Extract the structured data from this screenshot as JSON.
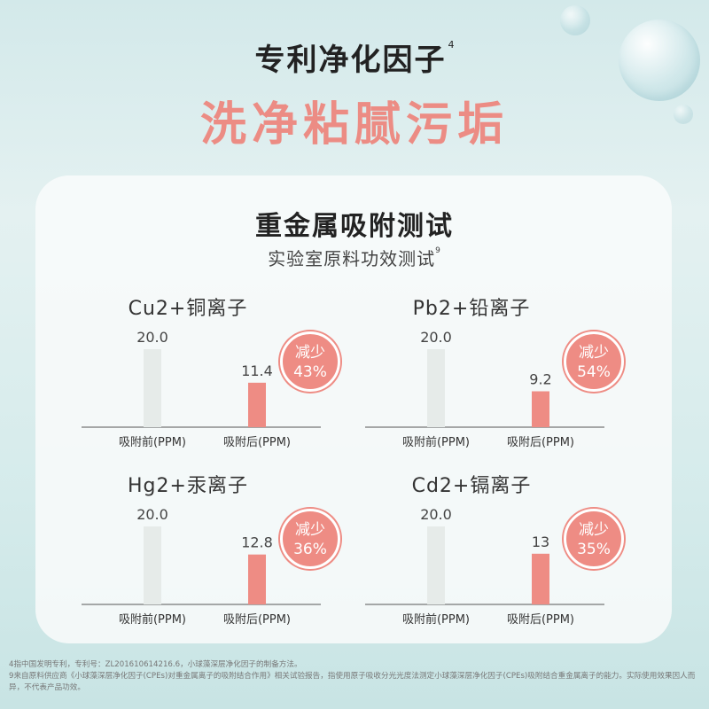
{
  "header": {
    "title": "专利净化因子",
    "title_sup": "4",
    "headline": "洗净粘腻污垢"
  },
  "card": {
    "title": "重金属吸附测试",
    "subtitle": "实验室原料功效测试",
    "subtitle_sup": "9"
  },
  "colors": {
    "accent": "#ee8c84",
    "before_bar": "#e6ebe9",
    "after_bar": "#ee8c84"
  },
  "chart_data": [
    {
      "type": "bar",
      "title": "Cu2+铜离子",
      "categories": [
        "吸附前(PPM)",
        "吸附后(PPM)"
      ],
      "values": [
        20.0,
        11.4
      ],
      "value_labels": [
        "20.0",
        "11.4"
      ],
      "badge": {
        "label": "减少",
        "value": "43%"
      },
      "ylim": [
        0,
        20
      ]
    },
    {
      "type": "bar",
      "title": "Pb2+铅离子",
      "categories": [
        "吸附前(PPM)",
        "吸附后(PPM)"
      ],
      "values": [
        20.0,
        9.2
      ],
      "value_labels": [
        "20.0",
        "9.2"
      ],
      "badge": {
        "label": "减少",
        "value": "54%"
      },
      "ylim": [
        0,
        20
      ]
    },
    {
      "type": "bar",
      "title": "Hg2+汞离子",
      "categories": [
        "吸附前(PPM)",
        "吸附后(PPM)"
      ],
      "values": [
        20.0,
        12.8
      ],
      "value_labels": [
        "20.0",
        "12.8"
      ],
      "badge": {
        "label": "减少",
        "value": "36%"
      },
      "ylim": [
        0,
        20
      ]
    },
    {
      "type": "bar",
      "title": "Cd2+镉离子",
      "categories": [
        "吸附前(PPM)",
        "吸附后(PPM)"
      ],
      "values": [
        20.0,
        13
      ],
      "value_labels": [
        "20.0",
        "13"
      ],
      "badge": {
        "label": "减少",
        "value": "35%"
      },
      "ylim": [
        0,
        20
      ]
    }
  ],
  "footnotes": [
    "4指中国发明专利，专利号：ZL201610614216.6，小球藻深层净化因子的制备方法。",
    "9来自原料供应商《小球藻深层净化因子(CPEs)对重金属离子的吸附结合作用》相关试验报告，指使用原子吸收分光光度法测定小球藻深层净化因子(CPEs)吸附结合重金属离子的能力。实际使用效果因人而异，不代表产品功效。"
  ]
}
